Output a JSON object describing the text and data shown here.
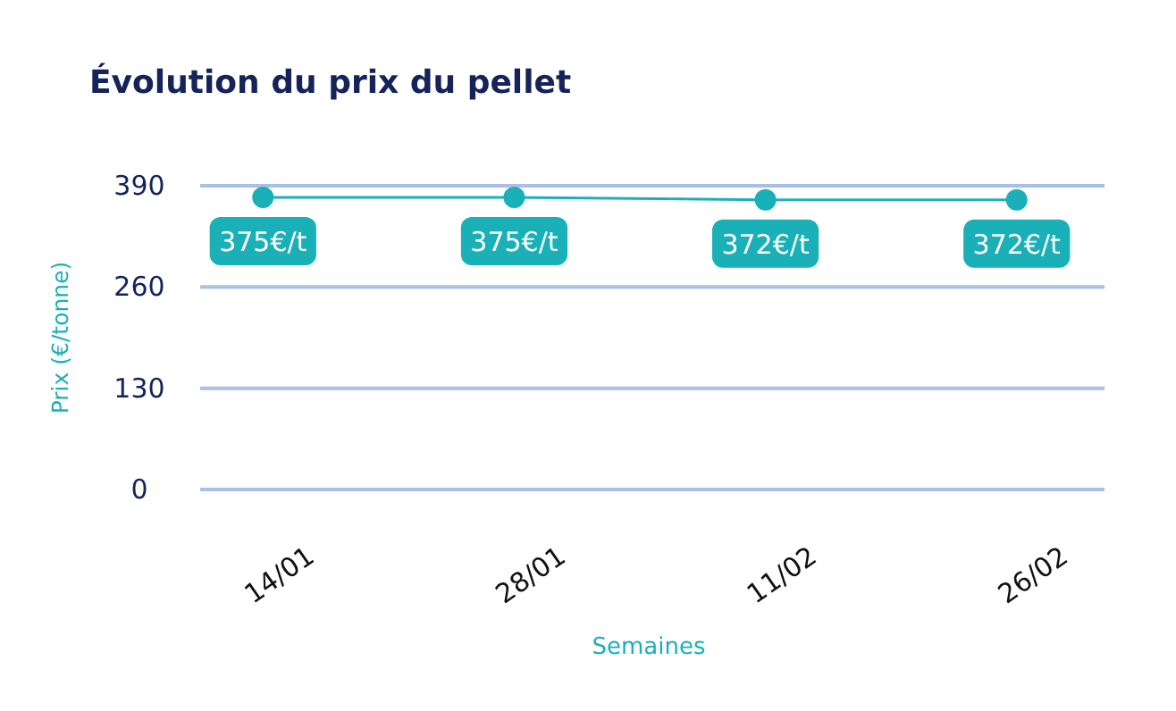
{
  "chart_data": {
    "type": "line",
    "title": "Évolution du prix du pellet",
    "xlabel": "Semaines",
    "ylabel": "Prix (€/tonne)",
    "categories": [
      "14/01",
      "28/01",
      "11/02",
      "26/02"
    ],
    "series": [
      {
        "color": "#1ab0b8",
        "values": [
          375,
          375,
          372,
          372
        ],
        "value_labels": [
          "375€/t",
          "375€/t",
          "372€/t",
          "372€/t"
        ]
      }
    ],
    "ylim": [
      0,
      390
    ],
    "yticks": [
      0,
      130,
      260,
      390
    ],
    "grid": "y",
    "marker": "circle",
    "line_style": "solid"
  }
}
